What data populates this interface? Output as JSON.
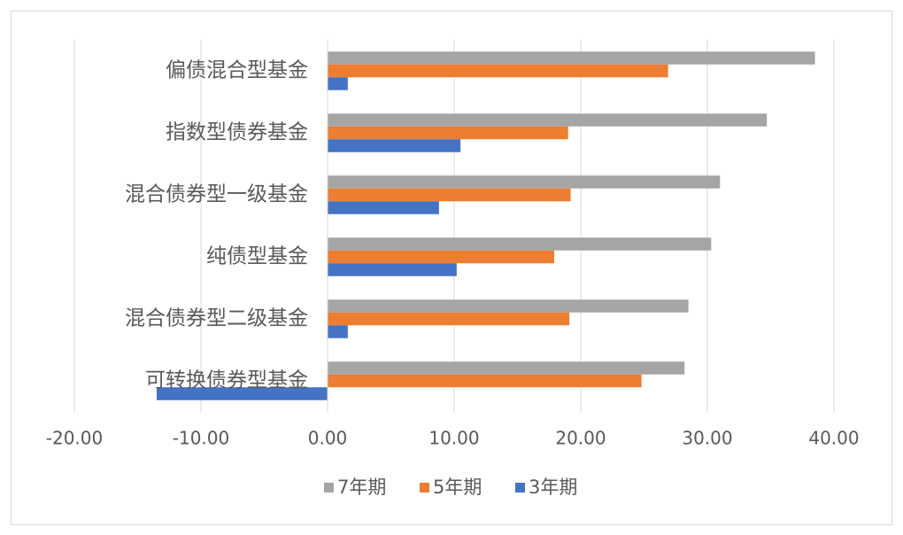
{
  "chart_data": {
    "type": "hbar",
    "categories": [
      "偏债混合型基金",
      "指数型债券基金",
      "混合债券型一级基金",
      "纯债型基金",
      "混合债券型二级基金",
      "可转换债券型基金"
    ],
    "series": [
      {
        "name": "7年期",
        "color": "#a5a5a5",
        "values": [
          38.5,
          34.7,
          31.0,
          30.3,
          28.5,
          28.2
        ]
      },
      {
        "name": "5年期",
        "color": "#ed7d31",
        "values": [
          26.9,
          19.0,
          19.2,
          17.9,
          19.1,
          24.8
        ]
      },
      {
        "name": "3年期",
        "color": "#4472c4",
        "values": [
          1.6,
          10.5,
          8.8,
          10.2,
          1.6,
          -13.5
        ]
      }
    ],
    "xlim": [
      -20,
      40
    ],
    "xticks": [
      {
        "value": -20,
        "label": "-20.00"
      },
      {
        "value": -10,
        "label": "-10.00"
      },
      {
        "value": 0,
        "label": "0.00"
      },
      {
        "value": 10,
        "label": "10.00"
      },
      {
        "value": 20,
        "label": "20.00"
      },
      {
        "value": 30,
        "label": "30.00"
      },
      {
        "value": 40,
        "label": "40.00"
      }
    ],
    "grid": true,
    "legend": "bottom"
  }
}
